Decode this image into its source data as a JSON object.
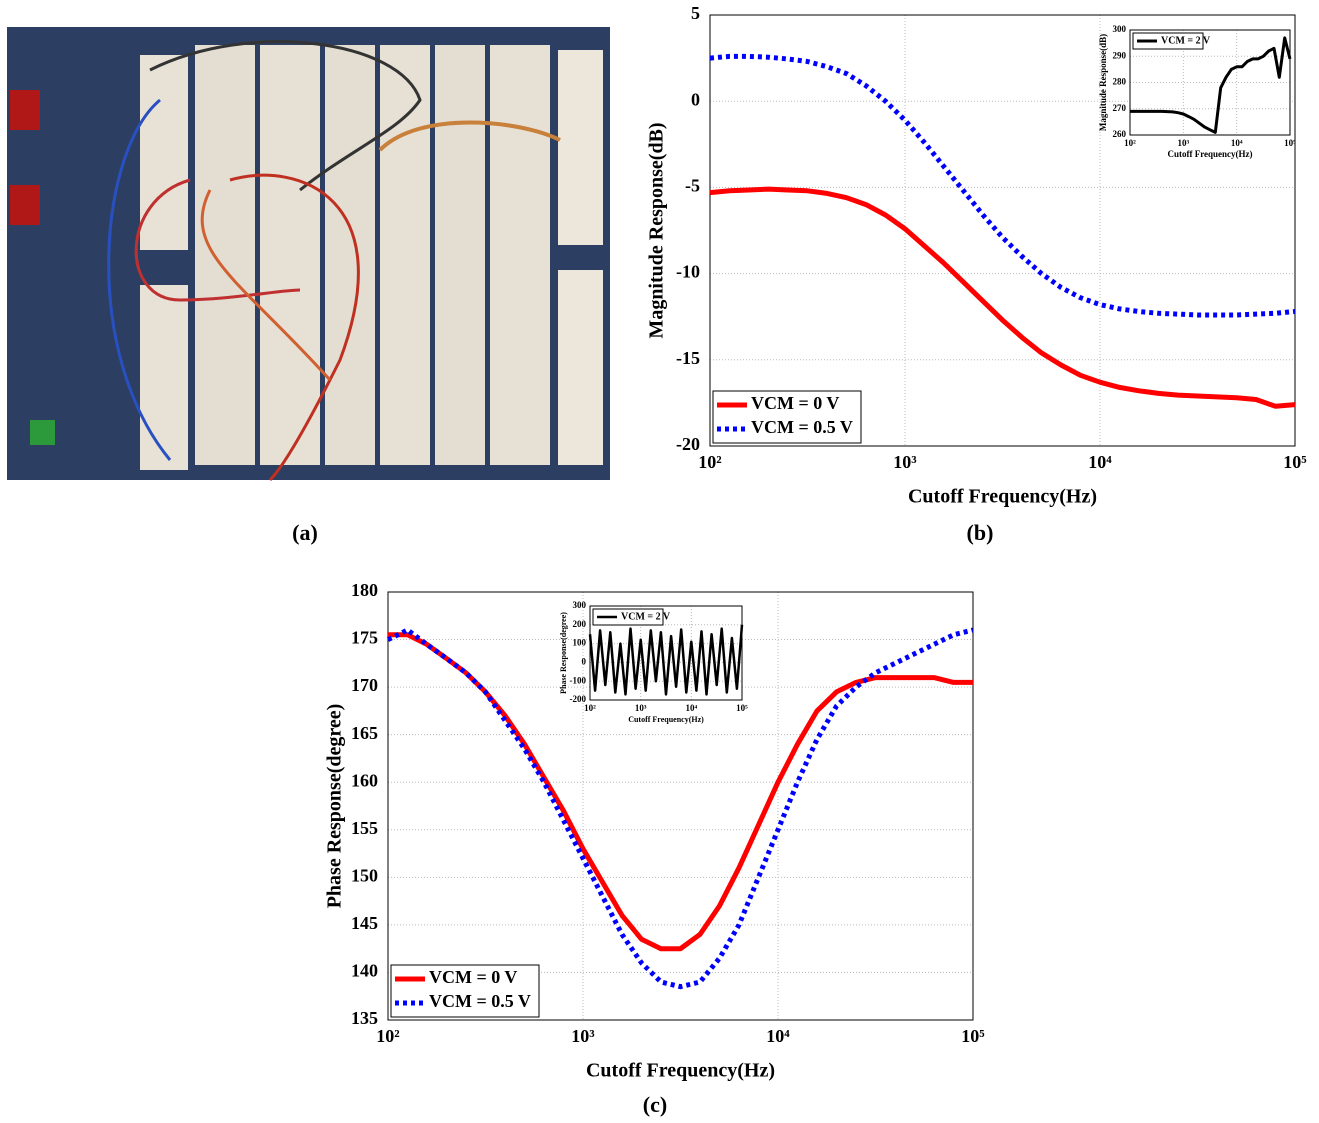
{
  "captions": [
    "(a)",
    "(b)",
    "(c)"
  ],
  "chart_data": [
    {
      "type": "line",
      "xlabel": "Cutoff Frequency(Hz)",
      "ylabel": "Magnitude Response(dB)",
      "xscale": "log",
      "xlim": [
        100,
        100000
      ],
      "xticks": [
        {
          "value": 100,
          "label": "10²"
        },
        {
          "value": 1000,
          "label": "10³"
        },
        {
          "value": 10000,
          "label": "10⁴"
        },
        {
          "value": 100000,
          "label": "10⁵"
        }
      ],
      "ylim": [
        -20,
        5
      ],
      "yticks": [
        -20,
        -15,
        -10,
        -5,
        0,
        5
      ],
      "grid": true,
      "legend": "lower left",
      "x": [
        100,
        126,
        158,
        200,
        251,
        316,
        398,
        501,
        631,
        794,
        1000,
        1259,
        1585,
        1995,
        2512,
        3162,
        3981,
        5012,
        6310,
        7943,
        10000,
        12589,
        15849,
        19953,
        25119,
        31623,
        39811,
        50119,
        63096,
        79433,
        100000
      ],
      "series": [
        {
          "name": "VCM = 0 V",
          "color": "#ff0000",
          "linestyle": "solid",
          "values": [
            -5.3,
            -5.2,
            -5.15,
            -5.1,
            -5.15,
            -5.2,
            -5.35,
            -5.6,
            -6.0,
            -6.6,
            -7.4,
            -8.4,
            -9.4,
            -10.5,
            -11.6,
            -12.7,
            -13.7,
            -14.6,
            -15.3,
            -15.9,
            -16.3,
            -16.6,
            -16.8,
            -16.95,
            -17.05,
            -17.1,
            -17.15,
            -17.2,
            -17.3,
            -17.7,
            -17.6
          ]
        },
        {
          "name": "VCM = 0.5 V",
          "color": "#0000ff",
          "linestyle": "dotted",
          "values": [
            2.5,
            2.6,
            2.6,
            2.55,
            2.45,
            2.3,
            2.0,
            1.6,
            0.9,
            0.0,
            -1.1,
            -2.4,
            -3.8,
            -5.2,
            -6.6,
            -7.9,
            -9.0,
            -10.0,
            -10.8,
            -11.4,
            -11.8,
            -12.05,
            -12.2,
            -12.3,
            -12.35,
            -12.4,
            -12.4,
            -12.4,
            -12.35,
            -12.3,
            -12.2
          ]
        }
      ]
    },
    {
      "type": "line",
      "xlabel": "Cutoff Frequency(Hz)",
      "ylabel": "Magnitude Response(dB)",
      "xscale": "log",
      "xlim": [
        100,
        100000
      ],
      "xticks": [
        {
          "value": 100,
          "label": "10²"
        },
        {
          "value": 1000,
          "label": "10³"
        },
        {
          "value": 10000,
          "label": "10⁴"
        },
        {
          "value": 100000,
          "label": "10⁵"
        }
      ],
      "ylim": [
        260,
        300
      ],
      "yticks": [
        260,
        270,
        280,
        290,
        300
      ],
      "grid": true,
      "legend": "upper left",
      "x": [
        100,
        126,
        158,
        200,
        251,
        316,
        398,
        501,
        631,
        794,
        1000,
        1259,
        1585,
        1995,
        2512,
        3162,
        3981,
        5012,
        6310,
        7943,
        10000,
        12589,
        15849,
        19953,
        25119,
        31623,
        39811,
        50119,
        63096,
        79433,
        100000
      ],
      "series": [
        {
          "name": "VCM = 2 V",
          "color": "#000000",
          "linestyle": "solid",
          "values": [
            269,
            269,
            269,
            269,
            269,
            269,
            269,
            268.9,
            268.8,
            268.5,
            268,
            267,
            266,
            264.5,
            263,
            262,
            261,
            278,
            282,
            285,
            286,
            286,
            288,
            289,
            289,
            290,
            292,
            293,
            282,
            297,
            289
          ]
        }
      ]
    },
    {
      "type": "line",
      "xlabel": "Cutoff Frequency(Hz)",
      "ylabel": "Phase Response(degree)",
      "xscale": "log",
      "xlim": [
        100,
        100000
      ],
      "xticks": [
        {
          "value": 100,
          "label": "10²"
        },
        {
          "value": 1000,
          "label": "10³"
        },
        {
          "value": 10000,
          "label": "10⁴"
        },
        {
          "value": 100000,
          "label": "10⁵"
        }
      ],
      "ylim": [
        135,
        180
      ],
      "yticks": [
        135,
        140,
        145,
        150,
        155,
        160,
        165,
        170,
        175,
        180
      ],
      "grid": true,
      "legend": "lower left",
      "x": [
        100,
        126,
        158,
        200,
        251,
        316,
        398,
        501,
        631,
        794,
        1000,
        1259,
        1585,
        1995,
        2512,
        3162,
        3981,
        5012,
        6310,
        7943,
        10000,
        12589,
        15849,
        19953,
        25119,
        31623,
        39811,
        50119,
        63096,
        79433,
        100000
      ],
      "series": [
        {
          "name": "VCM = 0 V",
          "color": "#ff0000",
          "linestyle": "solid",
          "values": [
            175.5,
            175.5,
            174.5,
            173,
            171.5,
            169.5,
            167,
            164,
            160.5,
            157,
            153,
            149.5,
            146,
            143.5,
            142.5,
            142.5,
            144,
            147,
            151,
            155.5,
            160,
            164,
            167.5,
            169.5,
            170.5,
            171,
            171,
            171,
            171,
            170.5,
            170.5
          ]
        },
        {
          "name": "VCM = 0.5 V",
          "color": "#0000ff",
          "linestyle": "dotted",
          "values": [
            175,
            176,
            174.5,
            173,
            171.5,
            169.5,
            166.5,
            163.5,
            160,
            156,
            152,
            148,
            144,
            141,
            139,
            138.5,
            139,
            141.5,
            145,
            150,
            155,
            160,
            164.5,
            168,
            170,
            171.5,
            172.5,
            173.5,
            174.5,
            175.5,
            176
          ]
        }
      ]
    },
    {
      "type": "line",
      "xlabel": "Cutoff Frequency(Hz)",
      "ylabel": "Phase Response(degree)",
      "xscale": "log",
      "xlim": [
        100,
        100000
      ],
      "xticks": [
        {
          "value": 100,
          "label": "10²"
        },
        {
          "value": 1000,
          "label": "10³"
        },
        {
          "value": 10000,
          "label": "10⁴"
        },
        {
          "value": 100000,
          "label": "10⁵"
        }
      ],
      "ylim": [
        -200,
        300
      ],
      "yticks": [
        -200,
        -100,
        0,
        100,
        200,
        300
      ],
      "grid": true,
      "legend": "upper left",
      "x": [
        100,
        126,
        158,
        200,
        251,
        316,
        398,
        501,
        631,
        794,
        1000,
        1259,
        1585,
        1995,
        2512,
        3162,
        3981,
        5012,
        6310,
        7943,
        10000,
        12589,
        15849,
        19953,
        25119,
        31623,
        39811,
        50119,
        63096,
        79433,
        100000
      ],
      "series": [
        {
          "name": "VCM = 2 V",
          "color": "#000000",
          "linestyle": "solid",
          "values": [
            150,
            -150,
            170,
            -120,
            160,
            -160,
            100,
            -170,
            180,
            -140,
            120,
            -150,
            170,
            -100,
            160,
            -170,
            140,
            -130,
            175,
            -160,
            110,
            -150,
            165,
            -170,
            150,
            -120,
            180,
            -160,
            130,
            -140,
            200
          ]
        }
      ]
    }
  ]
}
